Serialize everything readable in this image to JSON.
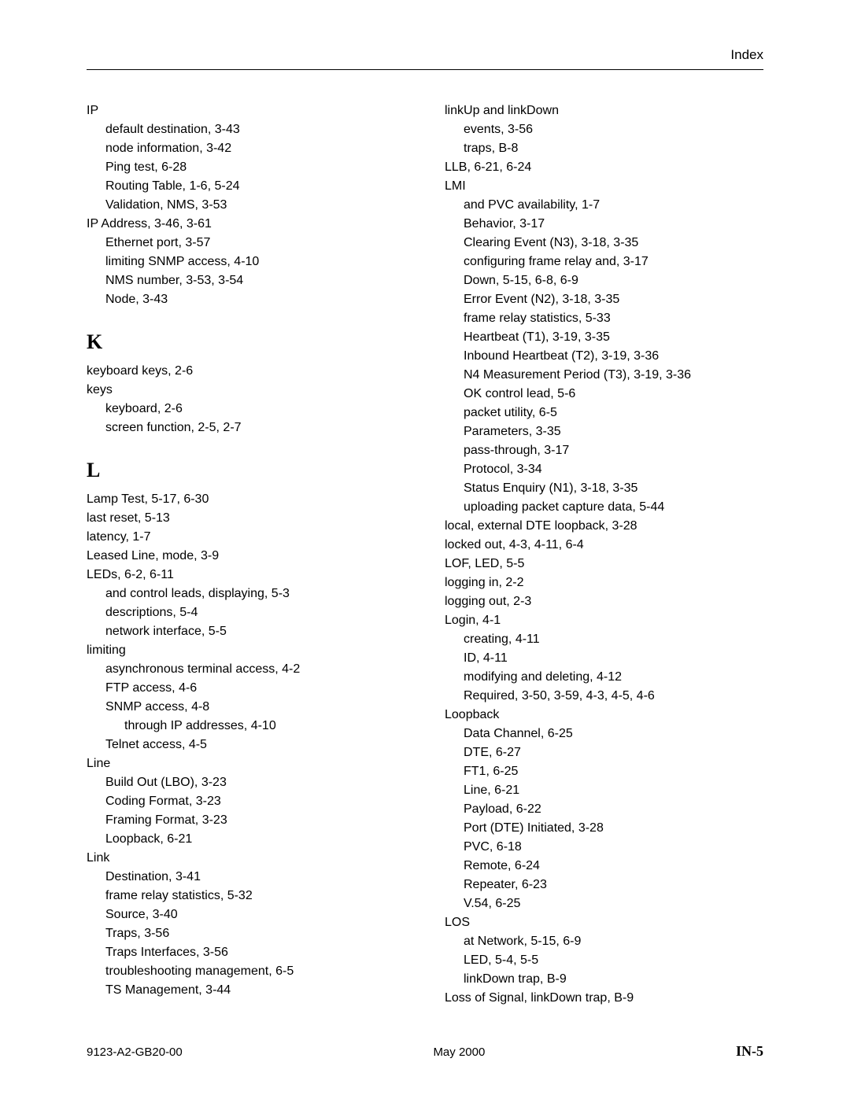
{
  "header": {
    "title": "Index"
  },
  "footer": {
    "docid": "9123-A2-GB20-00",
    "date": "May 2000",
    "page": "IN-5"
  },
  "left": [
    {
      "lvl": 0,
      "t": "IP"
    },
    {
      "lvl": 1,
      "t": "default destination,  3-43"
    },
    {
      "lvl": 1,
      "t": "node information,  3-42"
    },
    {
      "lvl": 1,
      "t": "Ping test,  6-28"
    },
    {
      "lvl": 1,
      "t": "Routing Table,  1-6,  5-24"
    },
    {
      "lvl": 1,
      "t": "Validation, NMS,  3-53"
    },
    {
      "lvl": 0,
      "t": "IP Address,  3-46,  3-61"
    },
    {
      "lvl": 1,
      "t": "Ethernet port,  3-57"
    },
    {
      "lvl": 1,
      "t": "limiting SNMP access,  4-10"
    },
    {
      "lvl": 1,
      "t": "NMS number,  3-53,  3-54"
    },
    {
      "lvl": 1,
      "t": "Node,  3-43"
    },
    {
      "letter": "K"
    },
    {
      "lvl": 0,
      "t": "keyboard keys,  2-6"
    },
    {
      "lvl": 0,
      "t": "keys"
    },
    {
      "lvl": 1,
      "t": "keyboard,  2-6"
    },
    {
      "lvl": 1,
      "t": "screen function,  2-5,  2-7"
    },
    {
      "letter": "L"
    },
    {
      "lvl": 0,
      "t": "Lamp Test,  5-17,  6-30"
    },
    {
      "lvl": 0,
      "t": "last reset,  5-13"
    },
    {
      "lvl": 0,
      "t": "latency,  1-7"
    },
    {
      "lvl": 0,
      "t": "Leased Line, mode,  3-9"
    },
    {
      "lvl": 0,
      "t": "LEDs,  6-2,  6-11"
    },
    {
      "lvl": 1,
      "t": "and control leads, displaying,  5-3"
    },
    {
      "lvl": 1,
      "t": "descriptions,  5-4"
    },
    {
      "lvl": 1,
      "t": "network interface,  5-5"
    },
    {
      "lvl": 0,
      "t": "limiting"
    },
    {
      "lvl": 1,
      "t": "asynchronous terminal access,  4-2"
    },
    {
      "lvl": 1,
      "t": "FTP access,  4-6"
    },
    {
      "lvl": 1,
      "t": "SNMP access,  4-8"
    },
    {
      "lvl": 2,
      "t": "through IP addresses,  4-10"
    },
    {
      "lvl": 1,
      "t": "Telnet access,  4-5"
    },
    {
      "lvl": 0,
      "t": "Line"
    },
    {
      "lvl": 1,
      "t": "Build Out (LBO),  3-23"
    },
    {
      "lvl": 1,
      "t": "Coding Format,  3-23"
    },
    {
      "lvl": 1,
      "t": "Framing Format,  3-23"
    },
    {
      "lvl": 1,
      "t": "Loopback,  6-21"
    },
    {
      "lvl": 0,
      "t": "Link"
    },
    {
      "lvl": 1,
      "t": "Destination,  3-41"
    },
    {
      "lvl": 1,
      "t": "frame relay statistics,  5-32"
    },
    {
      "lvl": 1,
      "t": "Source,  3-40"
    },
    {
      "lvl": 1,
      "t": "Traps,  3-56"
    },
    {
      "lvl": 1,
      "t": "Traps Interfaces,  3-56"
    },
    {
      "lvl": 1,
      "t": "troubleshooting management,  6-5"
    },
    {
      "lvl": 1,
      "t": "TS Management,  3-44"
    }
  ],
  "right": [
    {
      "lvl": 0,
      "t": "linkUp and linkDown"
    },
    {
      "lvl": 1,
      "t": "events,  3-56"
    },
    {
      "lvl": 1,
      "t": "traps,  B-8"
    },
    {
      "lvl": 0,
      "t": "LLB,  6-21,  6-24"
    },
    {
      "lvl": 0,
      "t": "LMI"
    },
    {
      "lvl": 1,
      "t": "and PVC availability,  1-7"
    },
    {
      "lvl": 1,
      "t": "Behavior,  3-17"
    },
    {
      "lvl": 1,
      "t": "Clearing Event (N3),  3-18,  3-35"
    },
    {
      "lvl": 1,
      "t": "configuring frame relay and,  3-17"
    },
    {
      "lvl": 1,
      "t": "Down,  5-15,  6-8,  6-9"
    },
    {
      "lvl": 1,
      "t": "Error Event (N2),  3-18,  3-35"
    },
    {
      "lvl": 1,
      "t": "frame relay statistics,  5-33"
    },
    {
      "lvl": 1,
      "t": "Heartbeat (T1),  3-19,  3-35"
    },
    {
      "lvl": 1,
      "t": "Inbound Heartbeat (T2),  3-19,  3-36"
    },
    {
      "lvl": 1,
      "t": "N4 Measurement Period (T3),  3-19,  3-36"
    },
    {
      "lvl": 1,
      "t": "OK control lead,  5-6"
    },
    {
      "lvl": 1,
      "t": "packet utility,  6-5"
    },
    {
      "lvl": 1,
      "t": "Parameters,  3-35"
    },
    {
      "lvl": 1,
      "t": "pass-through,  3-17"
    },
    {
      "lvl": 1,
      "t": "Protocol,  3-34"
    },
    {
      "lvl": 1,
      "t": "Status Enquiry (N1),  3-18,  3-35"
    },
    {
      "lvl": 1,
      "t": "uploading packet capture data,  5-44"
    },
    {
      "lvl": 0,
      "t": "local, external DTE loopback,  3-28"
    },
    {
      "lvl": 0,
      "t": "locked out,  4-3,  4-11,  6-4"
    },
    {
      "lvl": 0,
      "t": "LOF, LED,  5-5"
    },
    {
      "lvl": 0,
      "t": "logging in,  2-2"
    },
    {
      "lvl": 0,
      "t": "logging out,  2-3"
    },
    {
      "lvl": 0,
      "t": "Login,  4-1"
    },
    {
      "lvl": 1,
      "t": "creating,  4-11"
    },
    {
      "lvl": 1,
      "t": "ID,  4-11"
    },
    {
      "lvl": 1,
      "t": "modifying and deleting,  4-12"
    },
    {
      "lvl": 1,
      "t": "Required,  3-50,  3-59,  4-3,  4-5,  4-6"
    },
    {
      "lvl": 0,
      "t": "Loopback"
    },
    {
      "lvl": 1,
      "t": "Data Channel,  6-25"
    },
    {
      "lvl": 1,
      "t": "DTE,  6-27"
    },
    {
      "lvl": 1,
      "t": "FT1,  6-25"
    },
    {
      "lvl": 1,
      "t": "Line,  6-21"
    },
    {
      "lvl": 1,
      "t": "Payload,  6-22"
    },
    {
      "lvl": 1,
      "t": "Port (DTE) Initiated,  3-28"
    },
    {
      "lvl": 1,
      "t": "PVC,  6-18"
    },
    {
      "lvl": 1,
      "t": "Remote,  6-24"
    },
    {
      "lvl": 1,
      "t": "Repeater,  6-23"
    },
    {
      "lvl": 1,
      "t": "V.54,  6-25"
    },
    {
      "lvl": 0,
      "t": "LOS"
    },
    {
      "lvl": 1,
      "t": "at Network,  5-15,  6-9"
    },
    {
      "lvl": 1,
      "t": "LED,  5-4,  5-5"
    },
    {
      "lvl": 1,
      "t": "linkDown trap,  B-9"
    },
    {
      "lvl": 0,
      "t": "Loss of Signal, linkDown trap,  B-9"
    }
  ]
}
